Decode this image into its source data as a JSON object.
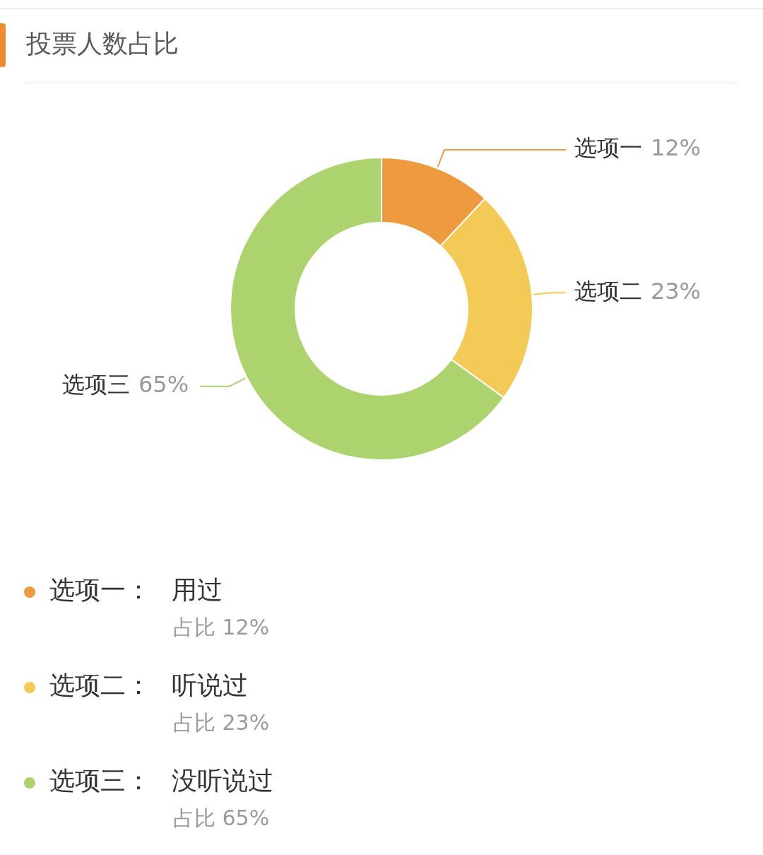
{
  "chart_data": {
    "type": "donut",
    "title": "投票人数占比",
    "categories": [
      "选项一",
      "选项二",
      "选项三"
    ],
    "values": [
      12,
      23,
      65
    ],
    "colors": [
      "#ee9a3e",
      "#f4ca57",
      "#acd36e"
    ],
    "value_labels": [
      "12%",
      "23%",
      "65%"
    ],
    "legend": "bottom",
    "annotations": [
      "：",
      "用过",
      "占比 12%",
      "：",
      "听说过",
      "占比 23%",
      "：",
      "没听说过",
      "占比 65%"
    ]
  }
}
